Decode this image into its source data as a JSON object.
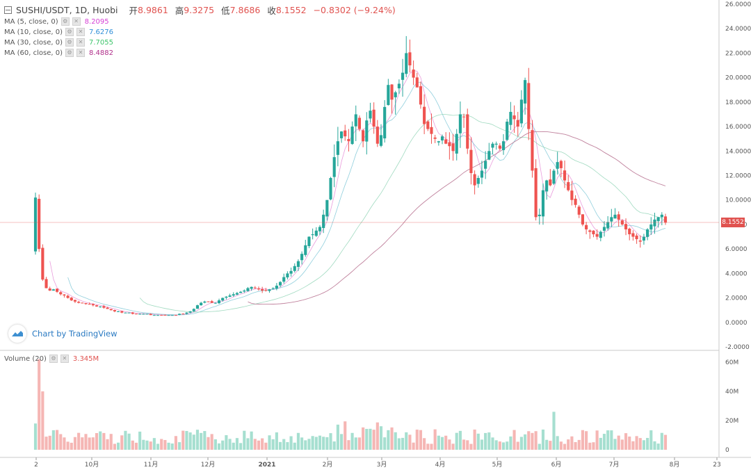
{
  "header": {
    "symbol": "SUSHI/USDT, 1D, Huobi",
    "open_label": "开",
    "open_value": "8.9861",
    "high_label": "高",
    "high_value": "9.3275",
    "low_label": "低",
    "low_value": "7.8686",
    "close_label": "收",
    "close_value": "8.1552",
    "change": "−0.8302 (−9.24%)"
  },
  "indicators": [
    {
      "label": "MA (5, close, 0)",
      "value": "8.2095",
      "color": "#d63fd6"
    },
    {
      "label": "MA (10, close, 0)",
      "value": "7.6276",
      "color": "#2f8fd8"
    },
    {
      "label": "MA (30, close, 0)",
      "value": "7.7055",
      "color": "#3cc46a"
    },
    {
      "label": "MA (60, close, 0)",
      "value": "8.4882",
      "color": "#b02f8a"
    }
  ],
  "volume_indicator": {
    "label": "Volume (20)",
    "value": "3.345M"
  },
  "watermark": "Chart by TradingView",
  "last_price_label": "8.1552",
  "colors": {
    "up": "#26a69a",
    "down": "#ef5350",
    "up_vol": "#a6dfd0",
    "down_vol": "#f5b6b4",
    "ma_slow": "#b56c8c",
    "ma_fast": "#7bc6d6"
  },
  "chart_data": {
    "type": "candlestick",
    "price_axis": {
      "min": -2,
      "max": 26,
      "ticks": [
        "26.0000",
        "24.0000",
        "22.0000",
        "20.0000",
        "18.0000",
        "16.0000",
        "14.0000",
        "12.0000",
        "10.0000",
        "8.0000",
        "6.0000",
        "4.0000",
        "2.0000",
        "0.0000",
        "-2.0000"
      ]
    },
    "volume_axis": {
      "min": 0,
      "max": 62,
      "unit": "M",
      "ticks": [
        "60M",
        "40M",
        "20M",
        "0"
      ]
    },
    "time_axis": {
      "labels": [
        "2",
        "10月",
        "11月",
        "12月",
        "2021",
        "2月",
        "3月",
        "4月",
        "5月",
        "6月",
        "7月",
        "8月",
        "23"
      ]
    },
    "last_price": 8.1552,
    "close_series_approx": [
      10.2,
      6.0,
      3.5,
      2.8,
      2.6,
      2.7,
      2.5,
      2.3,
      2.2,
      2.0,
      1.8,
      1.7,
      1.6,
      1.6,
      1.5,
      1.5,
      1.4,
      1.3,
      1.3,
      1.2,
      1.1,
      1.0,
      0.9,
      0.9,
      0.8,
      0.8,
      0.8,
      0.7,
      0.7,
      0.7,
      0.7,
      0.7,
      0.6,
      0.6,
      0.6,
      0.6,
      0.6,
      0.6,
      0.6,
      0.6,
      0.7,
      0.7,
      0.8,
      0.9,
      1.1,
      1.4,
      1.6,
      1.7,
      1.7,
      1.6,
      1.6,
      1.8,
      2.0,
      2.1,
      2.2,
      2.3,
      2.4,
      2.5,
      2.6,
      2.8,
      2.9,
      2.8,
      2.7,
      2.6,
      2.6,
      2.7,
      2.8,
      3.0,
      3.3,
      3.7,
      4.0,
      4.2,
      4.6,
      5.0,
      5.6,
      6.3,
      7.0,
      7.2,
      7.5,
      7.8,
      8.8,
      10.0,
      11.8,
      13.5,
      14.8,
      15.6,
      15.2,
      14.8,
      16.0,
      17.0,
      15.8,
      14.8,
      16.5,
      17.3,
      16.0,
      14.6,
      15.3,
      17.6,
      19.4,
      18.2,
      18.8,
      19.5,
      20.4,
      22.0,
      21.0,
      20.0,
      19.2,
      17.8,
      16.2,
      15.8,
      15.4,
      15.0,
      14.8,
      15.2,
      14.6,
      14.4,
      14.0,
      15.4,
      17.0,
      16.8,
      14.2,
      12.2,
      11.2,
      11.8,
      12.4,
      13.2,
      14.0,
      14.6,
      14.6,
      14.2,
      14.8,
      16.4,
      17.2,
      16.6,
      16.0,
      18.2,
      19.8,
      15.8,
      12.4,
      8.6,
      8.8,
      10.8,
      11.6,
      11.2,
      12.4,
      13.1,
      12.6,
      11.6,
      10.8,
      10.0,
      9.6,
      8.8,
      8.0,
      7.6,
      7.4,
      7.2,
      7.0,
      7.4,
      7.8,
      8.2,
      8.6,
      8.8,
      8.4,
      8.0,
      7.6,
      7.2,
      7.0,
      6.8,
      6.6,
      7.0,
      7.6,
      8.0,
      8.4,
      8.6,
      8.8,
      8.1552
    ]
  }
}
